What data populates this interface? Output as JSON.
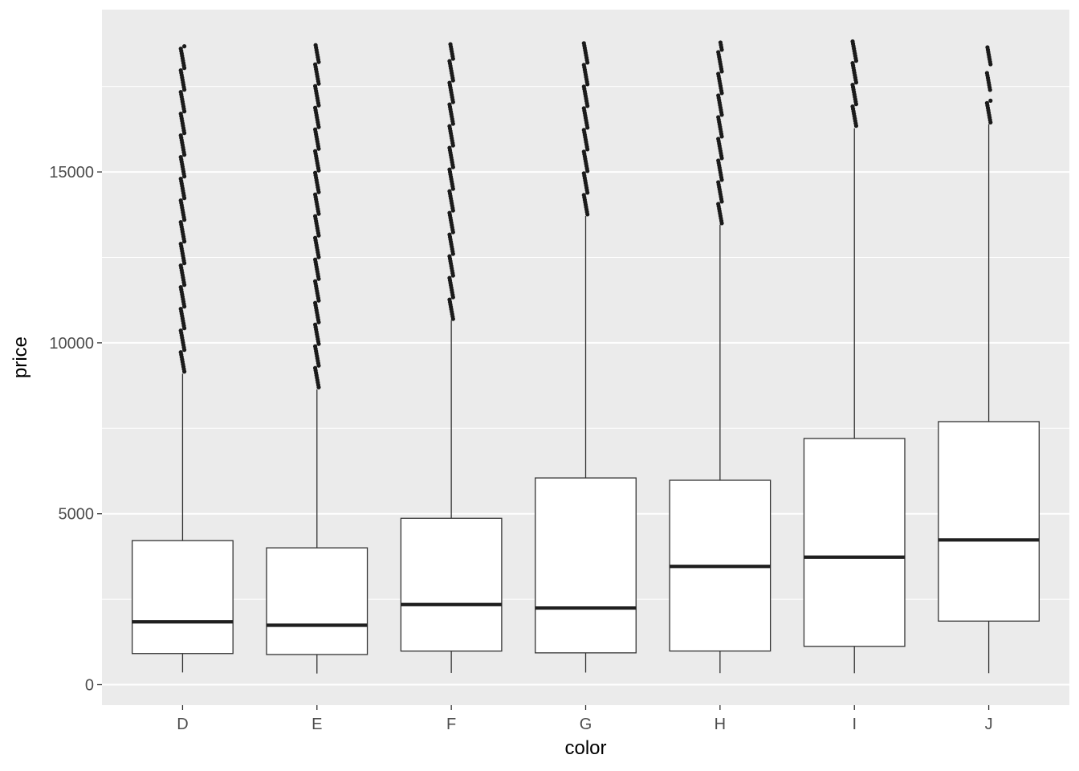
{
  "style": {
    "background": "#FFFFFF",
    "panel_bg": "#EBEBEB",
    "grid_major_color": "#FFFFFF",
    "grid_minor_color": "#FFFFFF",
    "box_fill": "#FFFFFF",
    "box_stroke": "#333333",
    "median_color": "#1F1F1F",
    "outlier_color": "#1A1A1A",
    "axis_text_color": "#4D4D4D",
    "axis_title_color": "#000000",
    "tick_mark_color": "#333333"
  },
  "chart_data": {
    "type": "boxplot",
    "title": "",
    "xlabel": "color",
    "ylabel": "price",
    "categories": [
      "D",
      "E",
      "F",
      "G",
      "H",
      "I",
      "J"
    ],
    "y_ticks": [
      0,
      5000,
      10000,
      15000
    ],
    "y_minor_ticks": [
      2500,
      7500,
      12500,
      17500
    ],
    "ylim": [
      -599,
      19748
    ],
    "grid": true,
    "legend": "none",
    "series": [
      {
        "category": "D",
        "whisker_low": 357,
        "q1": 911,
        "median": 1838,
        "q3": 4214,
        "whisker_high": 9100,
        "outliers": [
          [
            9160,
            18693
          ]
        ]
      },
      {
        "category": "E",
        "whisker_low": 326,
        "q1": 882,
        "median": 1739,
        "q3": 4003,
        "whisker_high": 8640,
        "outliers": [
          [
            8700,
            18731
          ]
        ]
      },
      {
        "category": "F",
        "whisker_low": 342,
        "q1": 982,
        "median": 2344,
        "q3": 4868,
        "whisker_high": 10660,
        "outliers": [
          [
            10700,
            18791
          ]
        ]
      },
      {
        "category": "G",
        "whisker_low": 354,
        "q1": 931,
        "median": 2242,
        "q3": 6048,
        "whisker_high": 13710,
        "outliers": [
          [
            13760,
            18818
          ]
        ]
      },
      {
        "category": "H",
        "whisker_low": 337,
        "q1": 984,
        "median": 3460,
        "q3": 5980,
        "whisker_high": 13460,
        "outliers": [
          [
            13500,
            18803
          ]
        ]
      },
      {
        "category": "I",
        "whisker_low": 334,
        "q1": 1121,
        "median": 3730,
        "q3": 7202,
        "whisker_high": 16280,
        "outliers": [
          [
            16350,
            18823
          ]
        ]
      },
      {
        "category": "J",
        "whisker_low": 335,
        "q1": 1860,
        "median": 4234,
        "q3": 7695,
        "whisker_high": 16400,
        "outliers": [
          [
            16450,
            17150
          ],
          [
            17400,
            17950
          ],
          [
            18150,
            18710
          ]
        ]
      }
    ]
  }
}
